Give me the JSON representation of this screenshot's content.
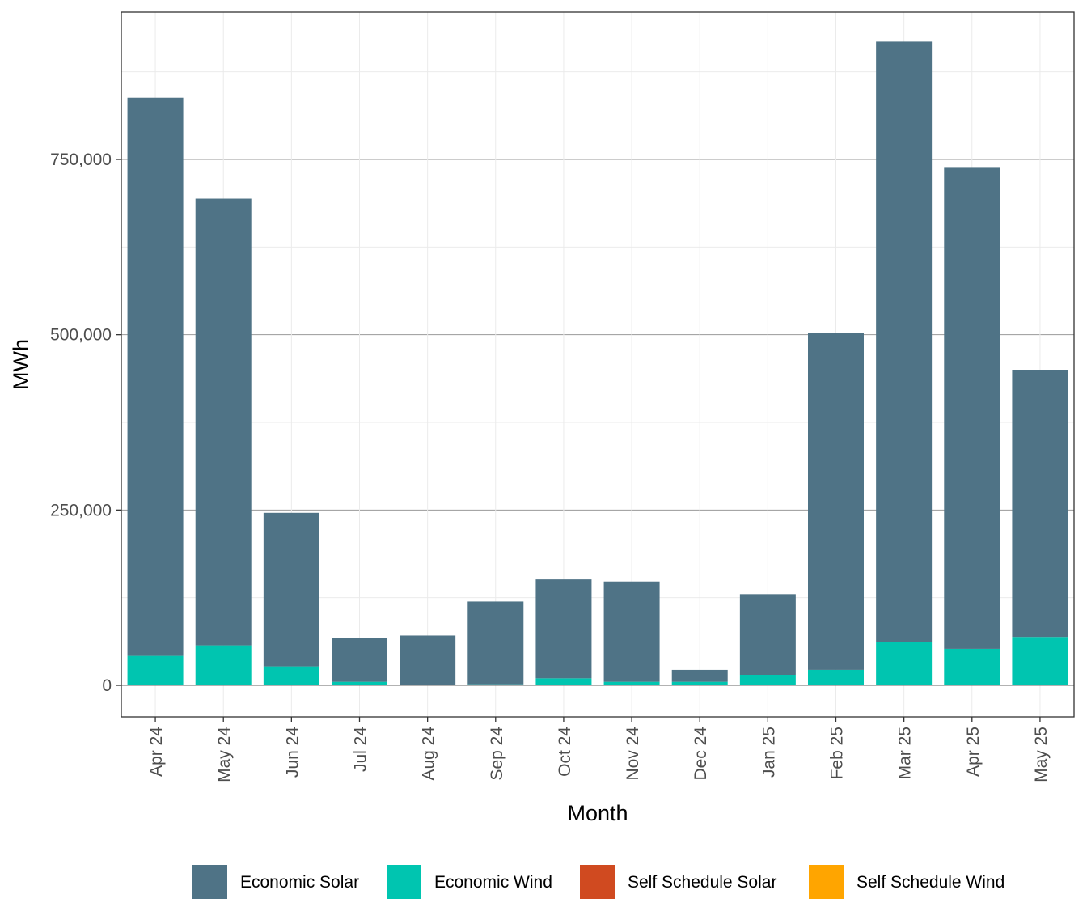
{
  "chart_data": {
    "type": "bar",
    "stacked": true,
    "xlabel": "Month",
    "ylabel": "MWh",
    "categories": [
      "Apr 24",
      "May 24",
      "Jun 24",
      "Jul 24",
      "Aug 24",
      "Sep 24",
      "Oct 24",
      "Nov 24",
      "Dec 24",
      "Jan 25",
      "Feb 25",
      "Mar 25",
      "Apr 25",
      "May 25"
    ],
    "ylim": [
      -45000,
      960000
    ],
    "yticks": [
      0,
      250000,
      500000,
      750000
    ],
    "ytick_labels": [
      "0",
      "250,000",
      "500,000",
      "750,000"
    ],
    "grid": true,
    "legend_position": "bottom",
    "series": [
      {
        "name": "Self Schedule Solar",
        "color": "#D04A20",
        "values": [
          0,
          0,
          0,
          0,
          0,
          0,
          0,
          0,
          0,
          0,
          0,
          0,
          0,
          0
        ]
      },
      {
        "name": "Self Schedule Wind",
        "color": "#FFA500",
        "values": [
          0,
          0,
          0,
          0,
          0,
          0,
          0,
          0,
          0,
          0,
          0,
          0,
          0,
          0
        ]
      },
      {
        "name": "Economic Wind",
        "color": "#00C5B0",
        "values": [
          42000,
          57000,
          27000,
          5000,
          1000,
          1500,
          10000,
          5000,
          5000,
          15000,
          22000,
          62000,
          52000,
          69000
        ]
      },
      {
        "name": "Economic Solar",
        "color": "#4F7386",
        "values": [
          796000,
          637000,
          219000,
          63000,
          70000,
          118000,
          141000,
          143000,
          17000,
          115000,
          480000,
          856000,
          686000,
          381000
        ]
      }
    ],
    "legend_order": [
      "Economic Solar",
      "Economic Wind",
      "Self Schedule Solar",
      "Self Schedule Wind"
    ]
  }
}
